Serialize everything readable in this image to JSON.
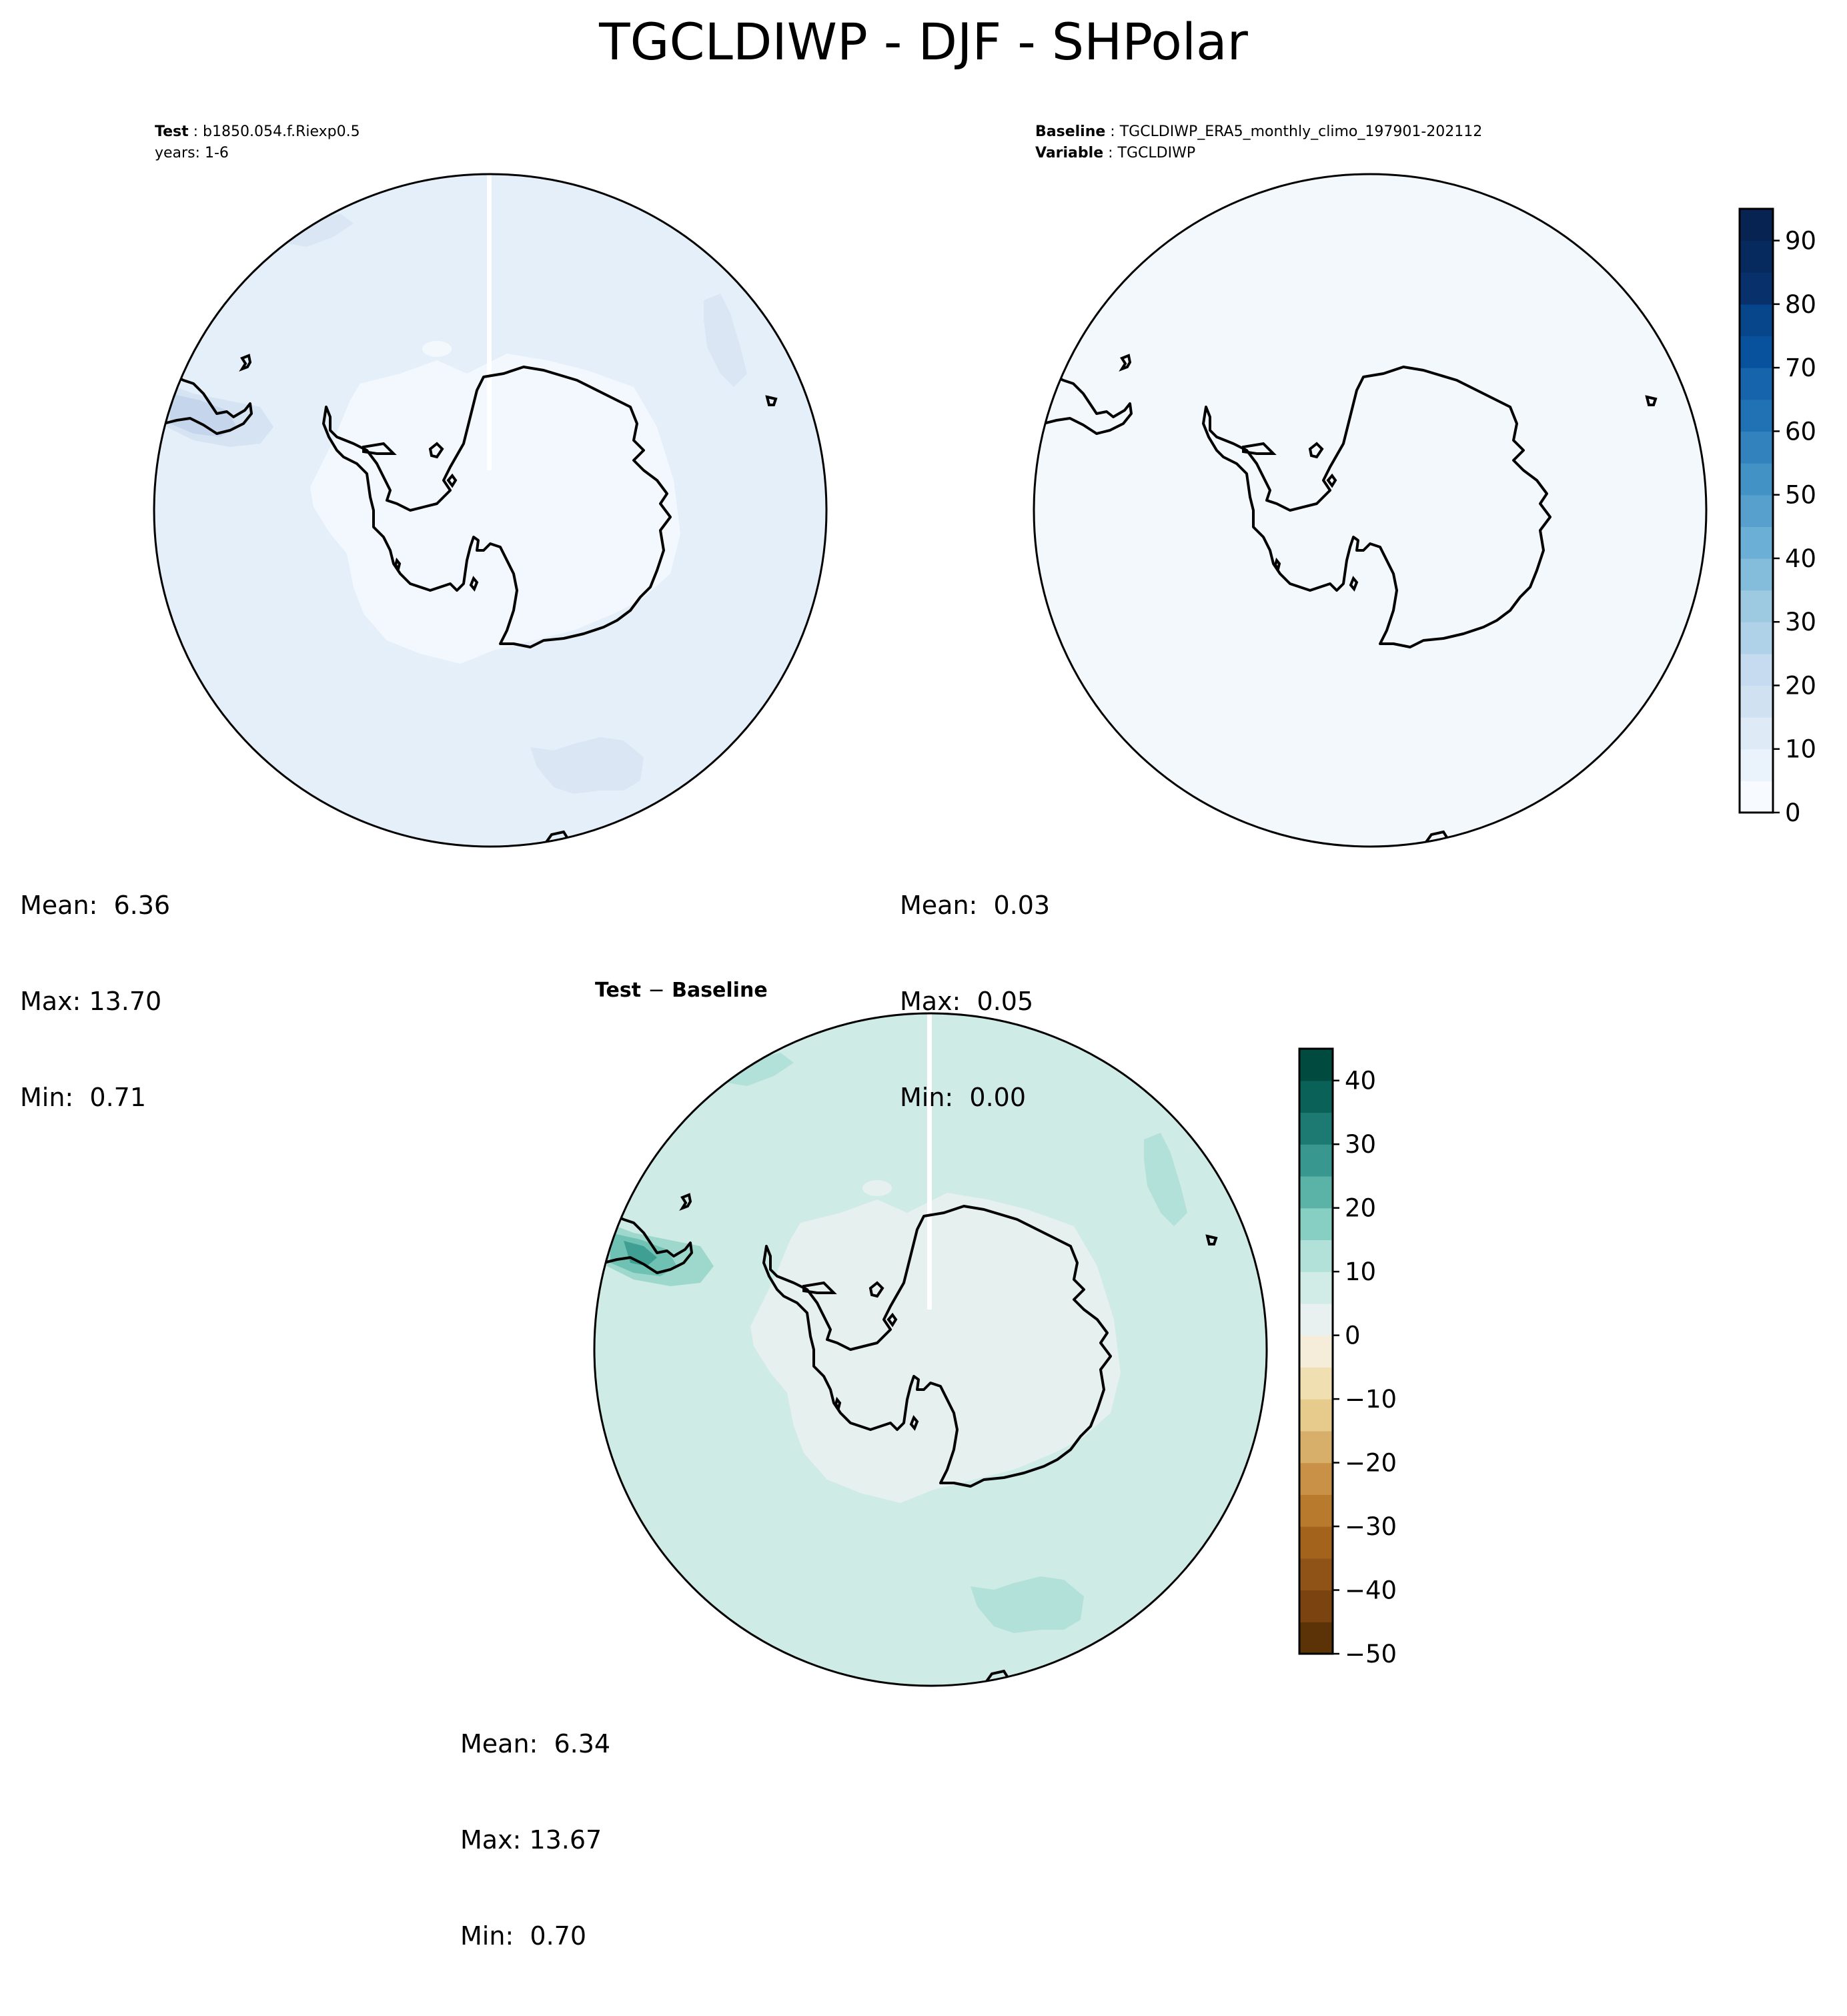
{
  "figure": {
    "title": "TGCLDIWP - DJF - SHPolar"
  },
  "panels": {
    "test": {
      "header_label": "Test",
      "header_value": "b1850.054.f.Riexp0.5",
      "years": "years: 1-6",
      "stats": {
        "mean": "Mean:  6.36",
        "max": "Max: 13.70",
        "min": "Min:  0.71"
      }
    },
    "baseline": {
      "header_label": "Baseline",
      "header_value": "TGCLDIWP_ERA5_monthly_climo_197901-202112",
      "variable_label": "Variable",
      "variable_value": "TGCLDIWP",
      "stats": {
        "mean": "Mean:  0.03",
        "max": "Max:  0.05",
        "min": "Min:  0.00"
      }
    },
    "diff": {
      "title_test": "Test",
      "title_sep": "−",
      "title_baseline": "Baseline",
      "stats": {
        "mean": "Mean:  6.34",
        "max": "Max: 13.67",
        "min": "Min:  0.70"
      }
    }
  },
  "chart_data": [
    {
      "type": "heatmap",
      "panel": "Test",
      "projection": "south-polar stereographic",
      "colormap": "Blues",
      "levels": [
        0,
        5,
        10,
        15,
        20,
        25,
        30,
        35,
        40,
        45,
        50,
        55,
        60,
        65,
        70,
        75,
        80,
        85,
        90,
        95
      ],
      "stats": {
        "mean": 6.36,
        "max": 13.7,
        "min": 0.71
      }
    },
    {
      "type": "heatmap",
      "panel": "Baseline",
      "projection": "south-polar stereographic",
      "colormap": "Blues",
      "colorbar": {
        "levels": [
          0,
          5,
          10,
          15,
          20,
          25,
          30,
          35,
          40,
          45,
          50,
          55,
          60,
          65,
          70,
          75,
          80,
          85,
          90,
          95
        ],
        "ticks": [
          0,
          10,
          20,
          30,
          40,
          50,
          60,
          70,
          80,
          90
        ],
        "tick_labels": [
          "0",
          "10",
          "20",
          "30",
          "40",
          "50",
          "60",
          "70",
          "80",
          "90"
        ],
        "colors": [
          "#f7fbff",
          "#eaf2fb",
          "#deebf7",
          "#d0e1f2",
          "#c6dbef",
          "#b0d2e8",
          "#9ecae1",
          "#84bcdb",
          "#6baed6",
          "#57a0ce",
          "#4292c6",
          "#3282be",
          "#2171b5",
          "#1664ab",
          "#08519c",
          "#08468b",
          "#08306b",
          "#072a5e",
          "#062352"
        ]
      },
      "stats": {
        "mean": 0.03,
        "max": 0.05,
        "min": 0.0
      }
    },
    {
      "type": "heatmap",
      "panel": "Test - Baseline",
      "projection": "south-polar stereographic",
      "colormap": "BrBG",
      "colorbar": {
        "levels": [
          -50,
          -45,
          -40,
          -35,
          -30,
          -25,
          -20,
          -15,
          -10,
          -5,
          0,
          5,
          10,
          15,
          20,
          25,
          30,
          35,
          40,
          45
        ],
        "ticks": [
          -50,
          -40,
          -30,
          -20,
          -10,
          0,
          10,
          20,
          30,
          40
        ],
        "tick_labels": [
          "−50",
          "−40",
          "−30",
          "−20",
          "−10",
          "0",
          "10",
          "20",
          "30",
          "40"
        ],
        "colors": [
          "#5c3306",
          "#7a4310",
          "#8f5217",
          "#a4631d",
          "#b87b2e",
          "#c99147",
          "#d7ae6a",
          "#e6cb8c",
          "#f0dfb1",
          "#f5edd9",
          "#e8f1ef",
          "#d1ece7",
          "#b1e1d9",
          "#86cfc2",
          "#5bb3a8",
          "#38978e",
          "#1d7a72",
          "#0a6158",
          "#014a3f"
        ]
      },
      "stats": {
        "mean": 6.34,
        "max": 13.67,
        "min": 0.7
      }
    }
  ]
}
